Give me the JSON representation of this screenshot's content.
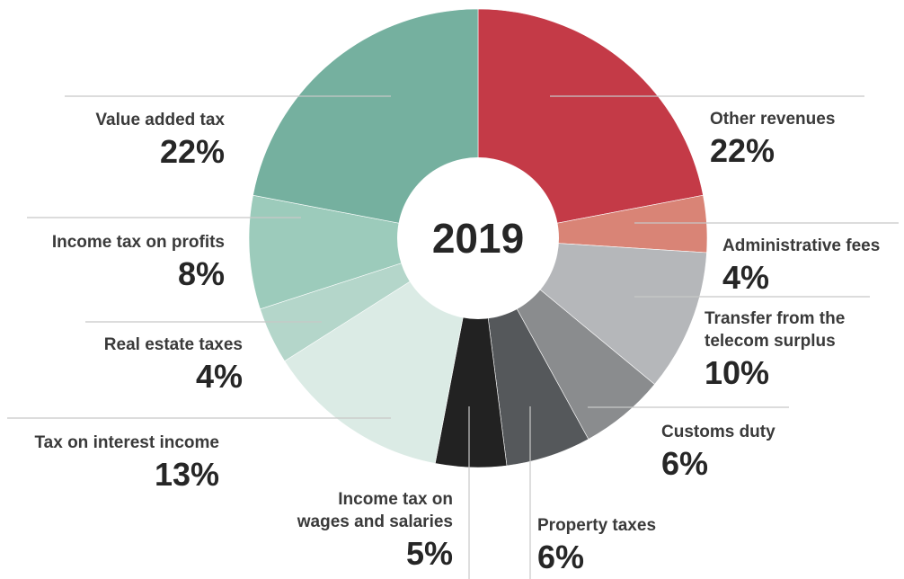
{
  "chart_data": {
    "type": "pie",
    "center_label": "2019",
    "slices": [
      {
        "label": [
          "Other revenues"
        ],
        "value": 22,
        "pct": "22%",
        "color": "#c43a47"
      },
      {
        "label": [
          "Administrative fees"
        ],
        "value": 4,
        "pct": "4%",
        "color": "#d98476"
      },
      {
        "label": [
          "Transfer from the",
          "telecom surplus"
        ],
        "value": 10,
        "pct": "10%",
        "color": "#b5b7ba"
      },
      {
        "label": [
          "Customs duty"
        ],
        "value": 6,
        "pct": "6%",
        "color": "#8a8c8e"
      },
      {
        "label": [
          "Property taxes"
        ],
        "value": 6,
        "pct": "6%",
        "color": "#55585b"
      },
      {
        "label": [
          "Income tax on",
          "wages and salaries"
        ],
        "value": 5,
        "pct": "5%",
        "color": "#222222"
      },
      {
        "label": [
          "Tax on interest income"
        ],
        "value": 13,
        "pct": "13%",
        "color": "#dbebe5"
      },
      {
        "label": [
          "Real estate taxes"
        ],
        "value": 4,
        "pct": "4%",
        "color": "#b4d6ca"
      },
      {
        "label": [
          "Income tax on profits"
        ],
        "value": 8,
        "pct": "8%",
        "color": "#9ccbbb"
      },
      {
        "label": [
          "Value added tax"
        ],
        "value": 22,
        "pct": "22%",
        "color": "#75b09f"
      }
    ]
  }
}
